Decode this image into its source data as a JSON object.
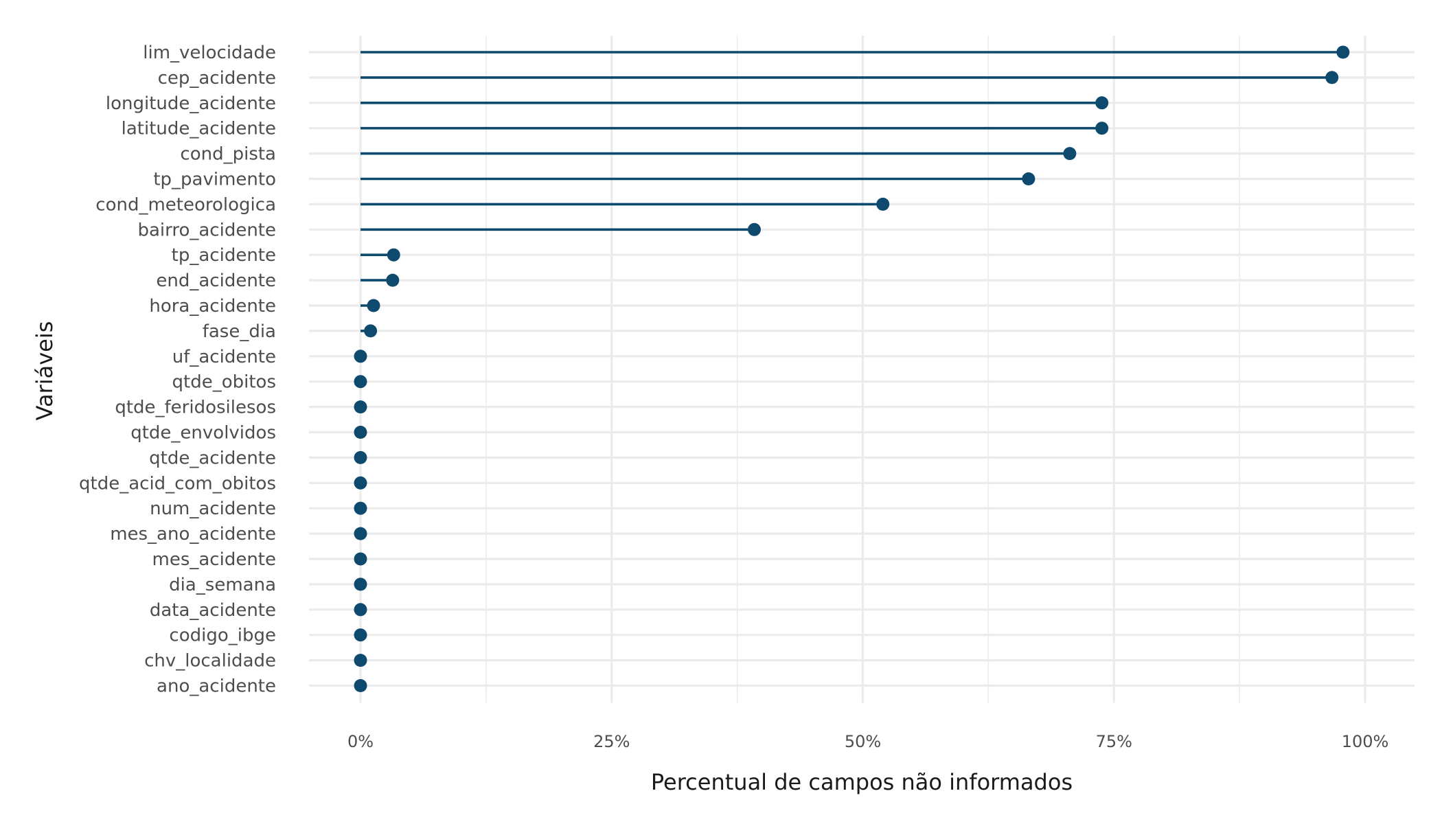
{
  "chart_data": {
    "type": "lollipop",
    "xlabel": "Percentual de campos não informados",
    "ylabel": "Variáveis",
    "xlim": [
      -0.05,
      1.05
    ],
    "x_ticks": [
      0,
      0.25,
      0.5,
      0.75,
      1.0
    ],
    "x_tick_labels": [
      "0%",
      "25%",
      "50%",
      "75%",
      "100%"
    ],
    "grid": true,
    "legend": "none",
    "color": "#0d4a6e",
    "categories": [
      "lim_velocidade",
      "cep_acidente",
      "longitude_acidente",
      "latitude_acidente",
      "cond_pista",
      "tp_pavimento",
      "cond_meteorologica",
      "bairro_acidente",
      "tp_acidente",
      "end_acidente",
      "hora_acidente",
      "fase_dia",
      "uf_acidente",
      "qtde_obitos",
      "qtde_feridosilesos",
      "qtde_envolvidos",
      "qtde_acidente",
      "qtde_acid_com_obitos",
      "num_acidente",
      "mes_ano_acidente",
      "mes_acidente",
      "dia_semana",
      "data_acidente",
      "codigo_ibge",
      "chv_localidade",
      "ano_acidente"
    ],
    "values": [
      0.978,
      0.967,
      0.738,
      0.738,
      0.706,
      0.665,
      0.52,
      0.392,
      0.033,
      0.032,
      0.013,
      0.01,
      0,
      0,
      0,
      0,
      0,
      0,
      0,
      0,
      0,
      0,
      0,
      0,
      0,
      0
    ]
  }
}
